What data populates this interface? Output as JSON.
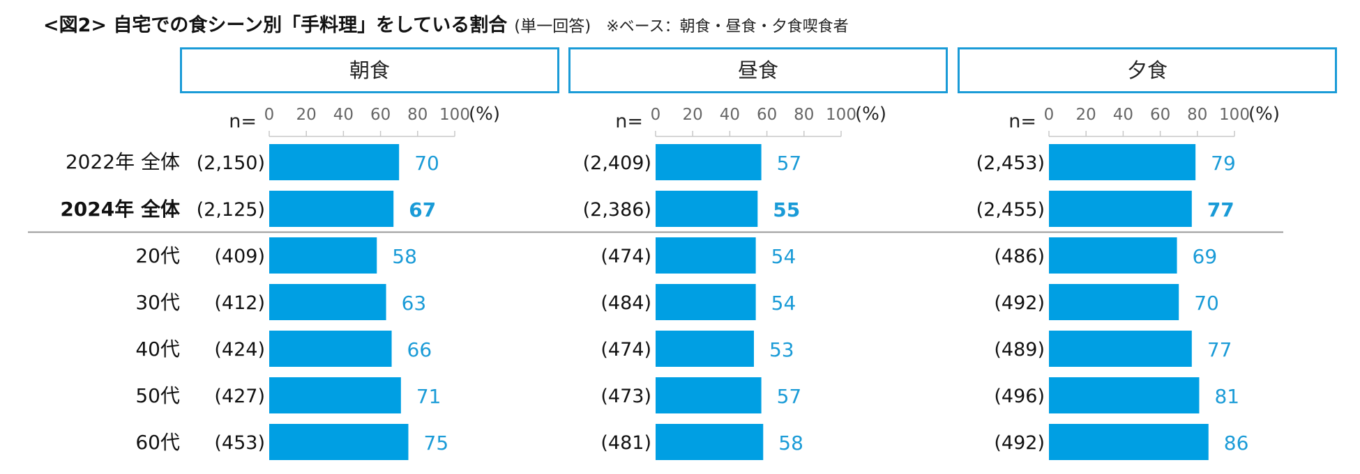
{
  "title": {
    "main": "<図2> 自宅での食シーン別「手料理」をしている割合",
    "answer_type": "(単一回答)",
    "base_note": "※ベース：朝食・昼食・夕食喫食者"
  },
  "chart_data": {
    "type": "bar",
    "orientation": "horizontal",
    "unit": "(%)",
    "n_label": "n=",
    "xlim": [
      0,
      100
    ],
    "ticks": [
      0,
      20,
      40,
      60,
      80,
      100
    ],
    "bar_color": "#009fe3",
    "value_color": "#1a9bd7",
    "categories": [
      "2022年 全体",
      "2024年 全体",
      "20代",
      "30代",
      "40代",
      "50代",
      "60代"
    ],
    "bold_category_index": 1,
    "separator_after_index": 1,
    "panels": [
      {
        "name": "朝食",
        "n": [
          "(2,150)",
          "(2,125)",
          "(409)",
          "(412)",
          "(424)",
          "(427)",
          "(453)"
        ],
        "values": [
          70,
          67,
          58,
          63,
          66,
          71,
          75
        ]
      },
      {
        "name": "昼食",
        "n": [
          "(2,409)",
          "(2,386)",
          "(474)",
          "(484)",
          "(474)",
          "(473)",
          "(481)"
        ],
        "values": [
          57,
          55,
          54,
          54,
          53,
          57,
          58
        ]
      },
      {
        "name": "夕食",
        "n": [
          "(2,453)",
          "(2,455)",
          "(486)",
          "(492)",
          "(489)",
          "(496)",
          "(492)"
        ],
        "values": [
          79,
          77,
          69,
          70,
          77,
          81,
          86
        ]
      }
    ]
  }
}
